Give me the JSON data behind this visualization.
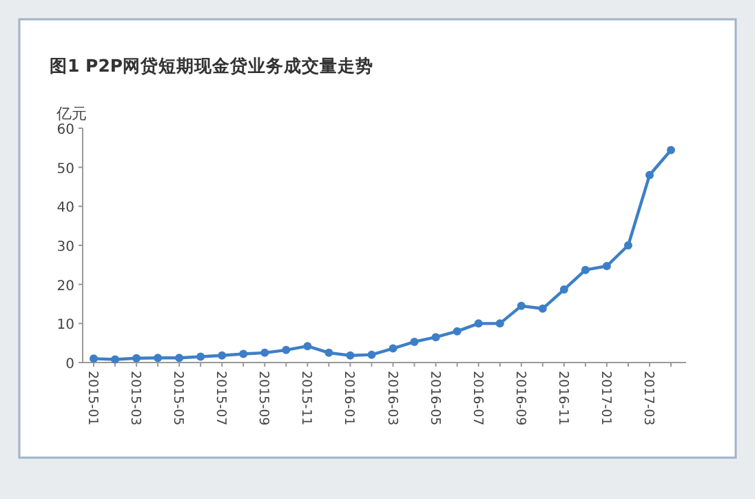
{
  "chart_data": {
    "type": "line",
    "title": "图1  P2P网贷短期现金贷业务成交量走势",
    "ylabel": "亿元",
    "categories": [
      "2015-01",
      null,
      "2015-03",
      null,
      "2015-05",
      null,
      "2015-07",
      null,
      "2015-09",
      null,
      "2015-11",
      null,
      "2016-01",
      null,
      "2016-03",
      null,
      "2016-05",
      null,
      "2016-07",
      null,
      "2016-09",
      null,
      "2016-11",
      null,
      "2017-01",
      null,
      "2017-03",
      null
    ],
    "series": [
      {
        "color": "#3d7fc7",
        "values": [
          1,
          0.8,
          1.1,
          1.2,
          1.2,
          1.5,
          1.8,
          2.2,
          2.5,
          3.2,
          4.2,
          2.5,
          1.8,
          2,
          3.6,
          5.3,
          6.5,
          8,
          10,
          10,
          14.5,
          13.8,
          18.7,
          23.7,
          24.7,
          30,
          48,
          54.4
        ]
      }
    ],
    "ylim": [
      0,
      60
    ],
    "yticks": [
      0,
      10,
      20,
      30,
      40,
      50,
      60
    ],
    "grid": false,
    "marker": "circle",
    "line_style": "solid"
  }
}
